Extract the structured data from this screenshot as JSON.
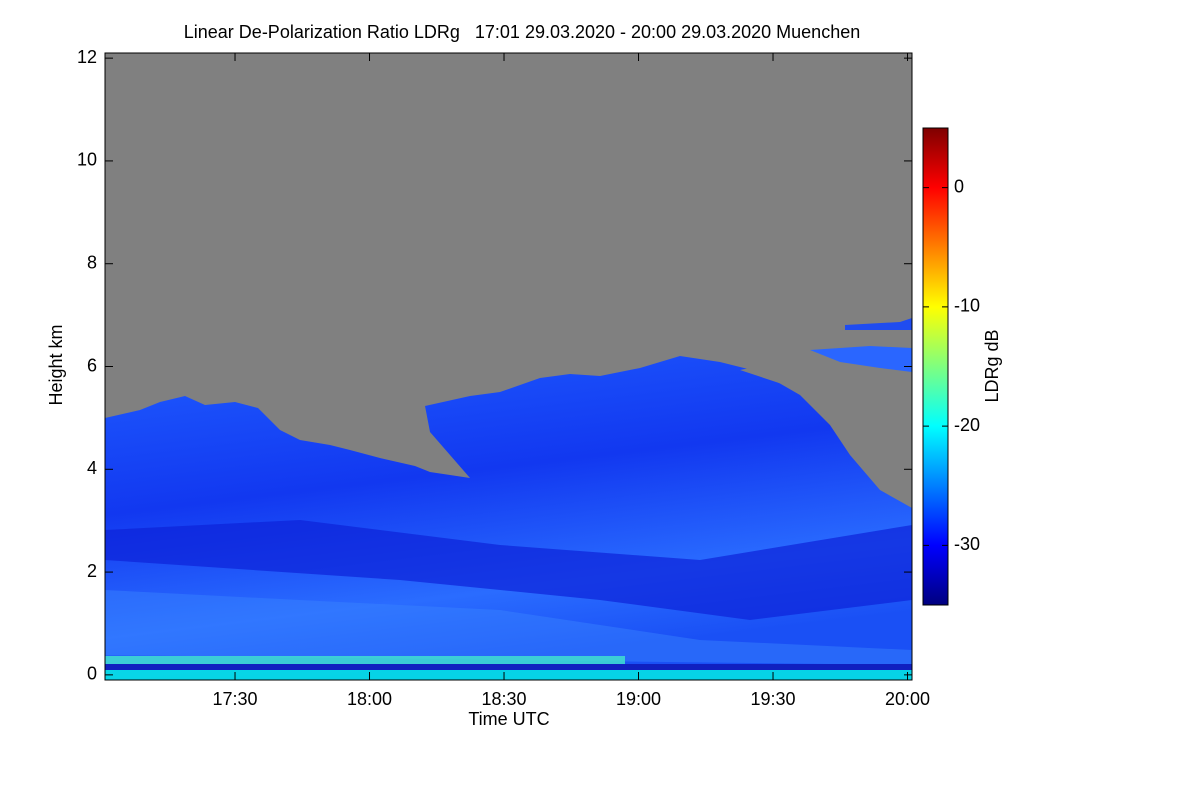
{
  "chart_data": {
    "type": "heatmap",
    "title": "Linear De-Polarization Ratio LDRg   17:01 29.03.2020 - 20:00 29.03.2020 Muenchen",
    "x_label": "Time UTC",
    "y_label": "Height km",
    "colorbar_label": "LDRg dB",
    "xlim": [
      1021,
      1201
    ],
    "xticks": [
      {
        "value": 1050,
        "label": "17:30"
      },
      {
        "value": 1080,
        "label": "18:00"
      },
      {
        "value": 1110,
        "label": "18:30"
      },
      {
        "value": 1140,
        "label": "19:00"
      },
      {
        "value": 1170,
        "label": "19:30"
      },
      {
        "value": 1200,
        "label": "20:00"
      }
    ],
    "ylim": [
      -0.1,
      12.1
    ],
    "yticks": [
      0,
      2,
      4,
      6,
      8,
      10,
      12
    ],
    "zlim": [
      -35,
      5
    ],
    "zticks": [
      -30,
      -20,
      -10,
      0
    ],
    "colormap": [
      "#00007f",
      "#0000ff",
      "#007fff",
      "#00ffff",
      "#7fff7f",
      "#ffff00",
      "#ff7f00",
      "#ff0000",
      "#7f0000"
    ],
    "no_data_color": "#808080"
  }
}
